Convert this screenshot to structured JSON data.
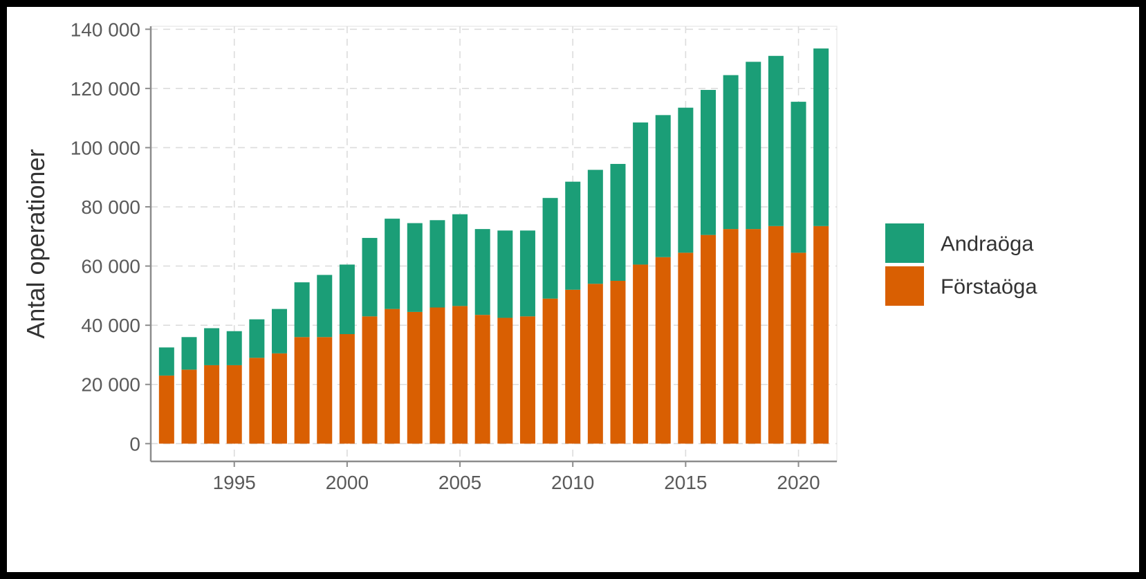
{
  "chart_data": {
    "type": "bar",
    "stacked": true,
    "title": "",
    "xlabel": "",
    "ylabel": "Antal operationer",
    "x": [
      1992,
      1993,
      1994,
      1995,
      1996,
      1997,
      1998,
      1999,
      2000,
      2001,
      2002,
      2003,
      2004,
      2005,
      2006,
      2007,
      2008,
      2009,
      2010,
      2011,
      2012,
      2013,
      2014,
      2015,
      2016,
      2017,
      2018,
      2019,
      2020,
      2021
    ],
    "series": [
      {
        "name": "Förstaöga",
        "color": "#d95f02",
        "values": [
          23000,
          25000,
          26500,
          26500,
          29000,
          30500,
          36000,
          36000,
          37000,
          43000,
          45500,
          44500,
          46000,
          46500,
          43500,
          42500,
          43000,
          49000,
          52000,
          54000,
          55000,
          60500,
          63000,
          64500,
          70500,
          72500,
          72500,
          73500,
          64500,
          73500
        ]
      },
      {
        "name": "Andraöga",
        "color": "#1b9e77",
        "values": [
          9500,
          11000,
          12500,
          11500,
          13000,
          15000,
          18500,
          21000,
          23500,
          26500,
          30500,
          30000,
          29500,
          31000,
          29000,
          29500,
          29000,
          34000,
          36500,
          38500,
          39500,
          48000,
          48000,
          49000,
          49000,
          52000,
          56500,
          57500,
          51000,
          60000
        ]
      }
    ],
    "ylim": [
      -6000,
      141000
    ],
    "xlim": [
      1991.3,
      2021.7
    ],
    "y_ticks": [
      0,
      20000,
      40000,
      60000,
      80000,
      100000,
      120000,
      140000
    ],
    "y_tick_labels": [
      "0",
      "20 000",
      "40 000",
      "60 000",
      "80 000",
      "100 000",
      "120 000",
      "140 000"
    ],
    "x_ticks": [
      1995,
      2000,
      2005,
      2010,
      2015,
      2020
    ],
    "x_tick_labels": [
      "1995",
      "2000",
      "2005",
      "2010",
      "2015",
      "2020"
    ],
    "grid": true,
    "legend": {
      "position": "right",
      "entries": [
        {
          "label": "Andraöga",
          "color": "#1b9e77"
        },
        {
          "label": "Förstaöga",
          "color": "#d95f02"
        }
      ]
    }
  }
}
